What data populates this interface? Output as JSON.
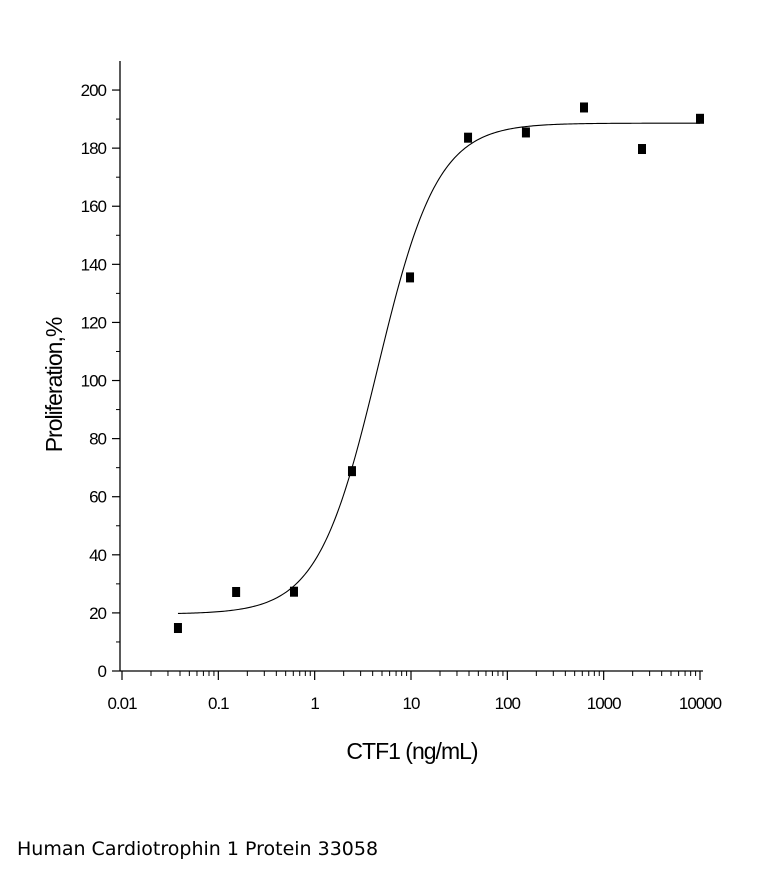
{
  "caption": "Human Cardiotrophin 1 Protein 33058",
  "chart_data": {
    "type": "scatter",
    "title": "",
    "xlabel": "CTF1 (ng/mL)",
    "ylabel": "Proliferation,%",
    "xscale": "log",
    "xlim": [
      0.01,
      10000
    ],
    "ylim": [
      0,
      210
    ],
    "xticks": [
      0.01,
      0.1,
      1,
      10,
      100,
      1000,
      10000
    ],
    "xtick_labels": [
      "0.01",
      "0.1",
      "1",
      "10",
      "100",
      "1000",
      "10000"
    ],
    "yticks": [
      0,
      20,
      40,
      60,
      80,
      100,
      120,
      140,
      160,
      180,
      200
    ],
    "ytick_labels": [
      "0",
      "20",
      "40",
      "60",
      "80",
      "100",
      "120",
      "140",
      "160",
      "180",
      "200"
    ],
    "grid": false,
    "series": [
      {
        "points": [
          {
            "x": 0.0381,
            "y": 14.8
          },
          {
            "x": 0.153,
            "y": 27.2
          },
          {
            "x": 0.61,
            "y": 27.3
          },
          {
            "x": 2.44,
            "y": 68.8
          },
          {
            "x": 9.77,
            "y": 135.5
          },
          {
            "x": 39.1,
            "y": 183.6
          },
          {
            "x": 156,
            "y": 185.4
          },
          {
            "x": 625,
            "y": 194.0
          },
          {
            "x": 2500,
            "y": 179.7
          },
          {
            "x": 10000,
            "y": 190.1
          }
        ],
        "marker": "square",
        "color": "#000000"
      }
    ],
    "fit_curve": {
      "model": "4PL",
      "bottom": 19.6,
      "top": 188.6,
      "ec50": 4.5,
      "hill": 1.4,
      "x_range": [
        0.0381,
        10000
      ],
      "color": "#000000"
    }
  }
}
